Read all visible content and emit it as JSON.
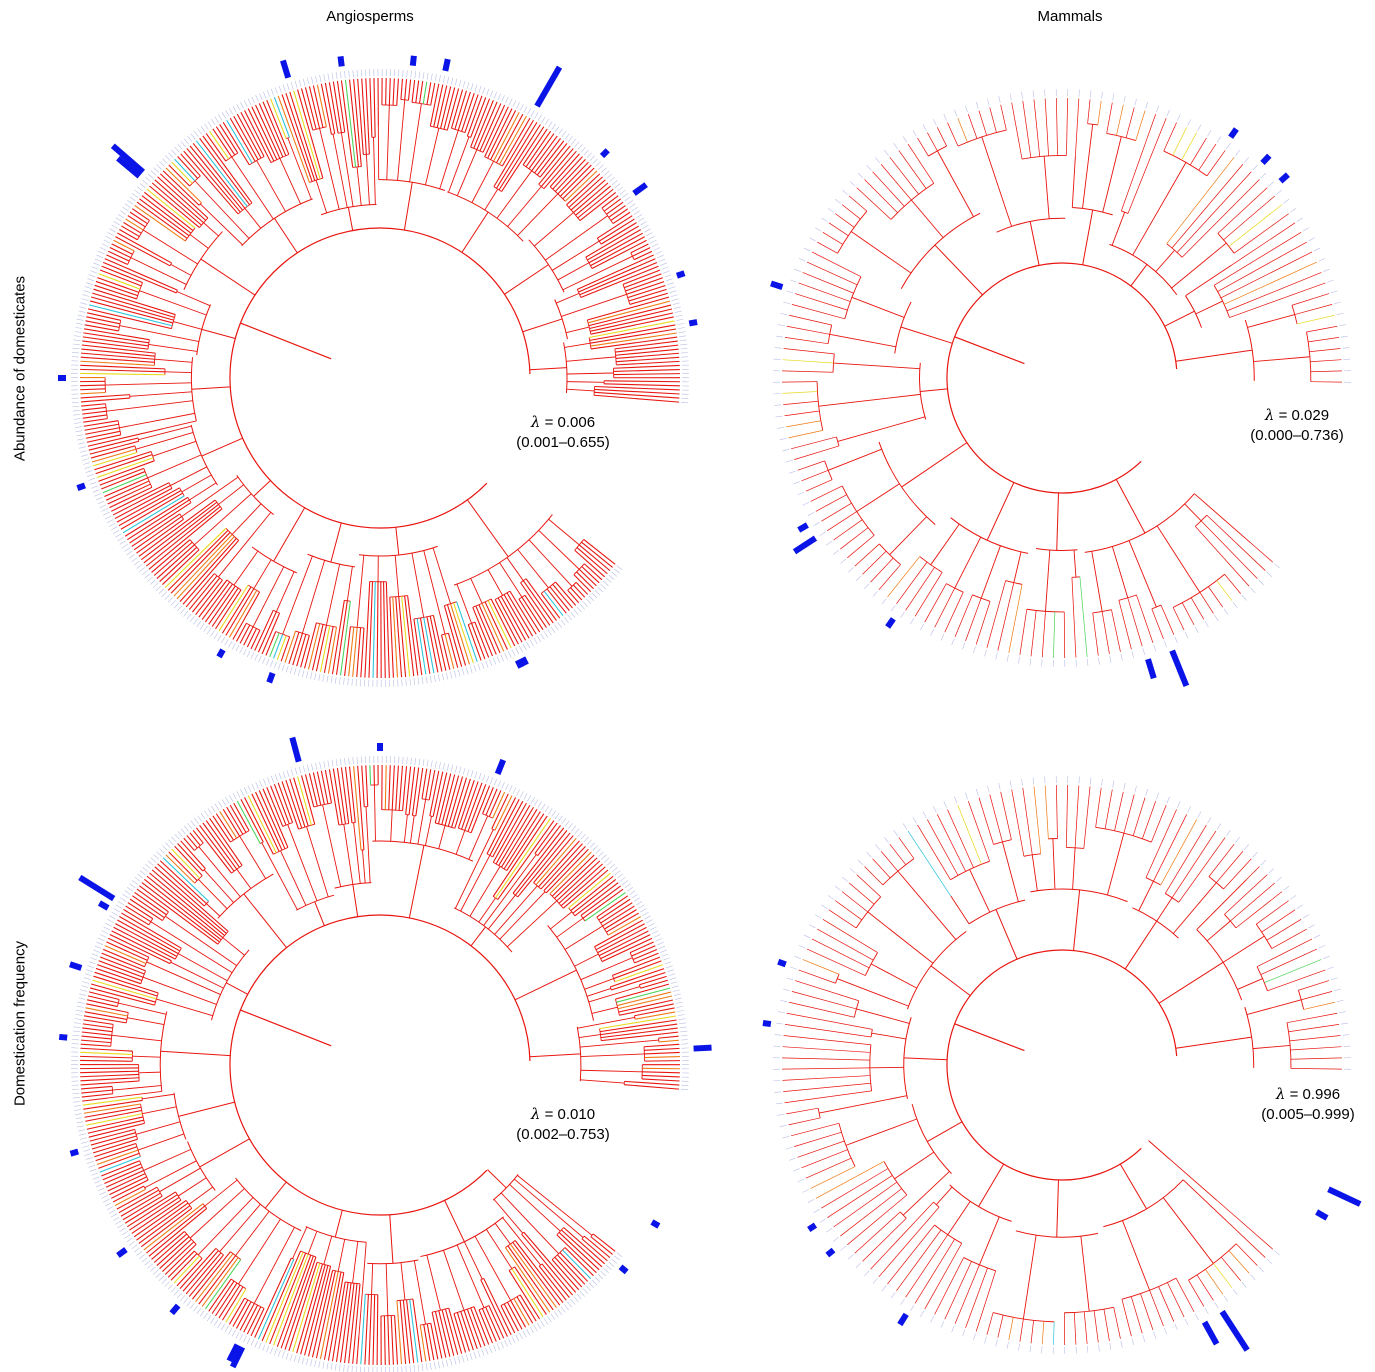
{
  "columns": {
    "left": "Angiosperms",
    "right": "Mammals"
  },
  "rows": {
    "top": "Abundance of domesticates",
    "bottom": "Domestication frequency"
  },
  "lambda_symbol": "λ",
  "colors": {
    "branch": "#e8150f",
    "branch_warm": "#f07a14",
    "branch_yellow": "#e8d81e",
    "branch_green": "#4cd35a",
    "branch_cyan": "#2bc4d8",
    "branch_blue": "#2b3fd6",
    "bar": "#0a14e6",
    "tip_label": "#b8bfe6"
  },
  "panels": [
    {
      "id": "angio-abundance",
      "taxon": "Angiosperms",
      "trait": "Abundance of domesticates",
      "lambda": "= 0.006",
      "ci": "(0.001–0.655)"
    },
    {
      "id": "mammal-abundance",
      "taxon": "Mammals",
      "trait": "Abundance of domesticates",
      "lambda": "= 0.029",
      "ci": "(0.000–0.736)"
    },
    {
      "id": "angio-frequency",
      "taxon": "Angiosperms",
      "trait": "Domestication frequency",
      "lambda": "= 0.010",
      "ci": "(0.002–0.753)"
    },
    {
      "id": "mammal-frequency",
      "taxon": "Mammals",
      "trait": "Domestication frequency",
      "lambda": "= 0.996",
      "ci": "(0.005–0.999)"
    }
  ]
}
